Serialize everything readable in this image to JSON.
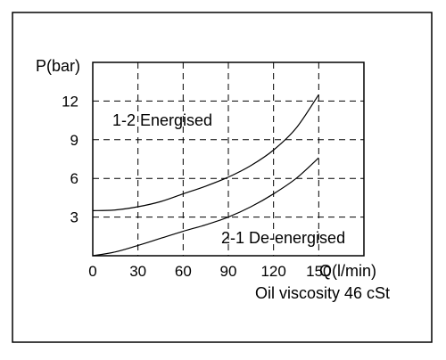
{
  "chart_data": {
    "type": "line",
    "ylabel": "P(bar)",
    "xlabel": "Q(l/min)",
    "note": "Oil viscosity 46 cSt",
    "xlim": [
      0,
      180
    ],
    "ylim": [
      0,
      15
    ],
    "x_ticks": [
      0,
      30,
      60,
      90,
      120,
      150
    ],
    "y_ticks": [
      3,
      6,
      9,
      12
    ],
    "x_tick_labels": [
      "0",
      "30",
      "60",
      "90",
      "120",
      "150"
    ],
    "y_tick_labels": [
      "3",
      "6",
      "9",
      "12"
    ],
    "grid": "dashed",
    "series": [
      {
        "name": "1-2 Energised",
        "x": [
          0,
          15,
          30,
          45,
          60,
          75,
          90,
          105,
          120,
          135,
          150
        ],
        "y": [
          3.5,
          3.55,
          3.8,
          4.2,
          4.8,
          5.4,
          6.1,
          7.0,
          8.2,
          9.9,
          12.5
        ]
      },
      {
        "name": "2-1 De-energised",
        "x": [
          0,
          15,
          30,
          45,
          60,
          75,
          90,
          105,
          120,
          135,
          150
        ],
        "y": [
          0.0,
          0.3,
          0.8,
          1.35,
          1.9,
          2.4,
          3.0,
          3.8,
          4.8,
          6.0,
          7.6
        ]
      }
    ]
  }
}
